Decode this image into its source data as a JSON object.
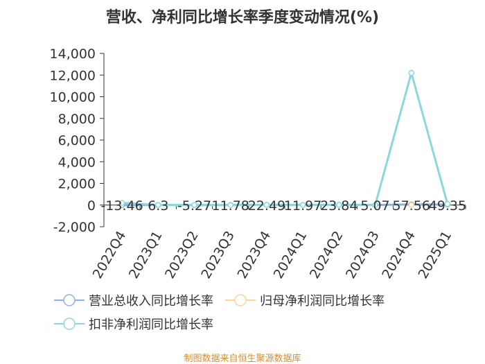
{
  "chart_data": {
    "type": "line",
    "title": "营收、净利同比增长率季度变动情况(%)",
    "categories": [
      "2022Q4",
      "2023Q1",
      "2023Q2",
      "2023Q3",
      "2023Q4",
      "2024Q1",
      "2024Q2",
      "2024Q3",
      "2024Q4",
      "2025Q1"
    ],
    "yticks": [
      "14,000",
      "12,000",
      "10,000",
      "8,000",
      "6,000",
      "4,000",
      "2,000",
      "0",
      "-2,000"
    ],
    "ylim": [
      -2000,
      14000
    ],
    "grid": false,
    "legend_position": "bottom",
    "series": [
      {
        "name": "营业总收入同比增长率",
        "color": "#8fb0dc",
        "values": [
          -13.46,
          6.3,
          -5.27,
          11.78,
          22.49,
          11.97,
          23.84,
          5.07,
          57.56,
          49.35
        ],
        "labels": [
          "-13.46",
          "6.3",
          "-5.27",
          "11.78",
          "22.49",
          "11.97",
          "23.84",
          "5.07",
          "57.56",
          "49.35"
        ]
      },
      {
        "name": "归母净利润同比增长率",
        "color": "#f7d79a",
        "values": [
          null,
          null,
          null,
          null,
          null,
          null,
          null,
          null,
          0,
          null
        ],
        "labels": []
      },
      {
        "name": "扣非净利润同比增长率",
        "color": "#8ad8dc",
        "values": [
          200,
          10,
          5,
          -10,
          20,
          5,
          10,
          0,
          12200,
          100
        ],
        "labels": []
      }
    ],
    "source": "制图数据来自恒生聚源数据库"
  }
}
